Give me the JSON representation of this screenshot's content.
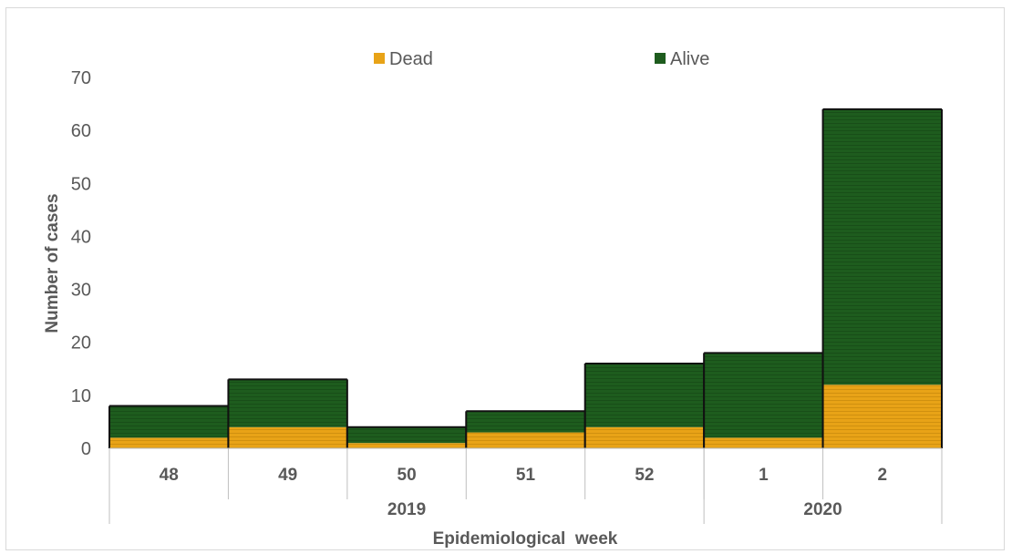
{
  "chart_data": {
    "type": "bar",
    "stacked": true,
    "categories": [
      "48",
      "49",
      "50",
      "51",
      "52",
      "1",
      "2"
    ],
    "groups": [
      {
        "label": "2019",
        "categories": [
          "48",
          "49",
          "50",
          "51",
          "52"
        ]
      },
      {
        "label": "2020",
        "categories": [
          "1",
          "2"
        ]
      }
    ],
    "series": [
      {
        "name": "Dead",
        "color": "#e8a317",
        "values": [
          2,
          4,
          1,
          3,
          4,
          2,
          12
        ]
      },
      {
        "name": "Alive",
        "color": "#1e5c1e",
        "values": [
          6,
          9,
          3,
          4,
          12,
          16,
          52
        ]
      }
    ],
    "xlabel": "Epidemiological  week",
    "ylabel": "Number of cases",
    "ylim": [
      0,
      70
    ],
    "yticks": [
      0,
      10,
      20,
      30,
      40,
      50,
      60,
      70
    ],
    "legend_position": "top-center",
    "grid": false
  }
}
